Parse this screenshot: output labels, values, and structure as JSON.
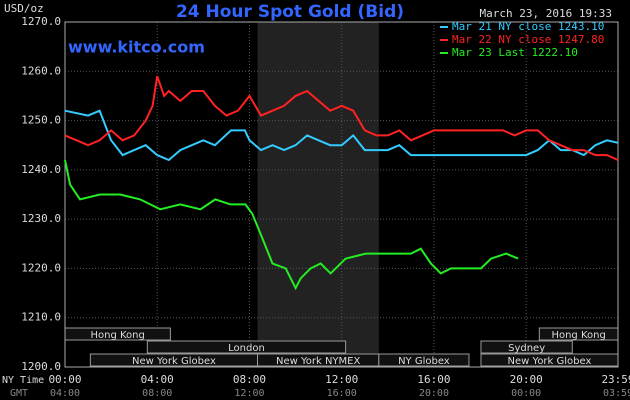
{
  "chart_data": {
    "type": "line",
    "title": "24 Hour Spot Gold (Bid)",
    "website": "www.kitco.com",
    "timestamp": "March 23, 2016 19:33",
    "y_label": "USD/oz",
    "x_label": "NY Time",
    "x2_label": "GMT",
    "ylim": [
      1200,
      1270
    ],
    "yticks": [
      {
        "value": 1200,
        "label": "1200.0"
      },
      {
        "value": 1210,
        "label": "1210.0"
      },
      {
        "value": 1220,
        "label": "1220.0"
      },
      {
        "value": 1230,
        "label": "1230.0"
      },
      {
        "value": 1240,
        "label": "1240.0"
      },
      {
        "value": 1250,
        "label": "1250.0"
      },
      {
        "value": 1260,
        "label": "1260.0"
      },
      {
        "value": 1270,
        "label": "1270.0"
      }
    ],
    "xlim": [
      0,
      23.983
    ],
    "xticks": [
      {
        "value": 0,
        "label": "00:00"
      },
      {
        "value": 4,
        "label": "04:00"
      },
      {
        "value": 8,
        "label": "08:00"
      },
      {
        "value": 12,
        "label": "12:00"
      },
      {
        "value": 16,
        "label": "16:00"
      },
      {
        "value": 20,
        "label": "20:00"
      },
      {
        "value": 23.983,
        "label": "23:59"
      }
    ],
    "x2_labels": [
      "04:00",
      "08:00",
      "12:00",
      "16:00",
      "20:00",
      "00:00",
      "03:59"
    ],
    "grid": true,
    "shaded": [
      8.35,
      13.61
    ],
    "sessions": [
      {
        "label": "Hong Kong",
        "start": 0,
        "end": 4.57,
        "row": 0
      },
      {
        "label": "Hong Kong",
        "start": 20.57,
        "end": 23.983,
        "row": 0
      },
      {
        "label": "London",
        "start": 3.57,
        "end": 12.17,
        "row": 1
      },
      {
        "label": "Sydney",
        "start": 18.04,
        "end": 22,
        "row": 1
      },
      {
        "label": "New York Globex",
        "start": 1.1,
        "end": 8.35,
        "row": 2
      },
      {
        "label": "New York NYMEX",
        "start": 8.35,
        "end": 13.61,
        "row": 2
      },
      {
        "label": "NY Globex",
        "start": 13.61,
        "end": 17.52,
        "row": 2
      },
      {
        "label": "New York Globex",
        "start": 18.04,
        "end": 23.983,
        "row": 2
      }
    ],
    "series": [
      {
        "name": "Mar 21 NY close 1243.10",
        "color": "#33ccff",
        "x": [
          0,
          1,
          1.5,
          2,
          2.5,
          3,
          3.5,
          4,
          4.5,
          5,
          5.5,
          6,
          6.5,
          7.2,
          7.8,
          8,
          8.5,
          9,
          9.5,
          10,
          10.5,
          11,
          11.5,
          12,
          12.5,
          13,
          14,
          14.5,
          15,
          16,
          17,
          18,
          19,
          20,
          20.5,
          21,
          21.5,
          22,
          22.5,
          23,
          23.5,
          23.983
        ],
        "values": [
          1252,
          1251,
          1252,
          1246,
          1243,
          1244,
          1245,
          1243,
          1242,
          1244,
          1245,
          1246,
          1245,
          1248,
          1248,
          1246,
          1244,
          1245,
          1244,
          1245,
          1247,
          1246,
          1245,
          1245,
          1247,
          1244,
          1244,
          1245,
          1243,
          1243,
          1243,
          1243,
          1243,
          1243,
          1244,
          1246,
          1244,
          1244,
          1243,
          1245,
          1246,
          1245.5
        ]
      },
      {
        "name": "Mar 22 NY close 1247.80",
        "color": "#ff2222",
        "x": [
          0,
          0.5,
          1,
          1.5,
          2,
          2.5,
          3,
          3.5,
          3.8,
          4,
          4.3,
          4.5,
          5,
          5.5,
          6,
          6.5,
          7,
          7.5,
          8,
          8.5,
          9,
          9.5,
          10,
          10.5,
          11,
          11.5,
          12,
          12.5,
          13,
          13.5,
          14,
          14.5,
          15,
          15.5,
          16,
          17,
          18,
          19,
          19.5,
          20,
          20.5,
          21,
          21.5,
          22,
          22.5,
          23,
          23.5,
          23.983
        ],
        "values": [
          1247,
          1246,
          1245,
          1246,
          1248,
          1246,
          1247,
          1250,
          1253,
          1259,
          1255,
          1256,
          1254,
          1256,
          1256,
          1253,
          1251,
          1252,
          1255,
          1251,
          1252,
          1253,
          1255,
          1256,
          1254,
          1252,
          1253,
          1252,
          1248,
          1247,
          1247,
          1248,
          1246,
          1247,
          1248,
          1248,
          1248,
          1248,
          1247,
          1248,
          1248,
          1246,
          1245,
          1244,
          1244,
          1243,
          1243,
          1242
        ]
      },
      {
        "name": "Mar 23 Last 1222.10",
        "color": "#22ee22",
        "x": [
          0,
          0.22,
          0.65,
          1.52,
          2.39,
          3.26,
          3.7,
          4.13,
          5,
          5.87,
          6.52,
          7.17,
          7.83,
          8.13,
          8.57,
          9,
          9.57,
          10,
          10.22,
          10.65,
          11.09,
          11.52,
          12.17,
          13.04,
          14.13,
          15,
          15.43,
          15.87,
          16.3,
          16.74,
          18.04,
          18.48,
          19.13,
          19.65
        ],
        "values": [
          1242,
          1237,
          1234,
          1235,
          1235,
          1234,
          1233,
          1232,
          1233,
          1232,
          1234,
          1233,
          1233,
          1231,
          1226,
          1221,
          1220,
          1216,
          1218,
          1220,
          1221,
          1219,
          1222,
          1223,
          1223,
          1223,
          1224,
          1221,
          1219,
          1220,
          1220,
          1222,
          1223,
          1222
        ]
      }
    ]
  }
}
